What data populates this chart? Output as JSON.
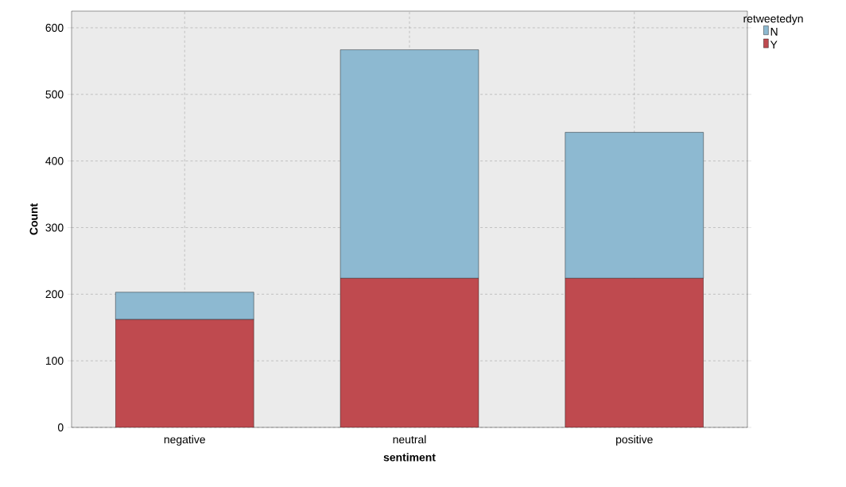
{
  "chart_data": {
    "type": "bar",
    "stacked": true,
    "xlabel": "sentiment",
    "ylabel": "Count",
    "legend_title": "retweetedyn",
    "categories": [
      "negative",
      "neutral",
      "positive"
    ],
    "series": [
      {
        "name": "Y",
        "color": "#bf4a4f",
        "values": [
          162,
          224,
          224
        ]
      },
      {
        "name": "N",
        "color": "#8db9d1",
        "values": [
          41,
          343,
          219
        ]
      }
    ],
    "ylim": [
      0,
      625
    ],
    "yticks": [
      0,
      100,
      200,
      300,
      400,
      500,
      600
    ],
    "grid": true,
    "legend": "top right"
  }
}
